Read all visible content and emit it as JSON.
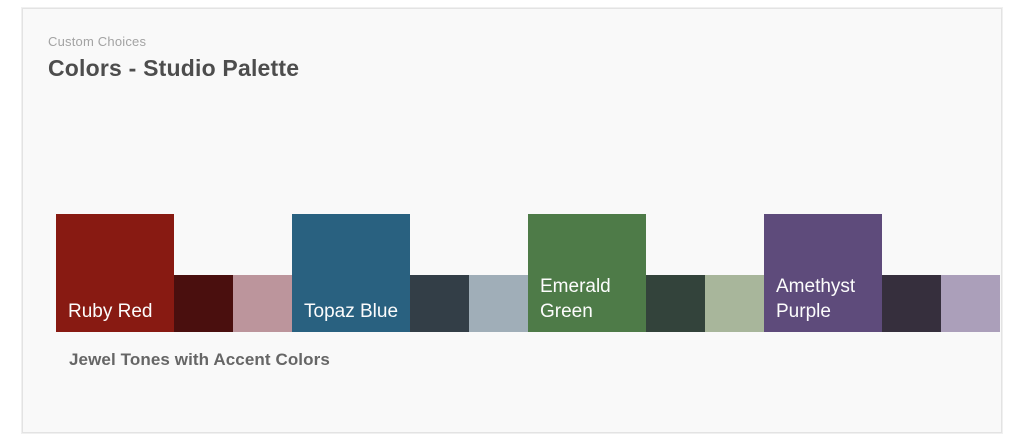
{
  "header": {
    "eyebrow": "Custom Choices",
    "title": "Colors - Studio Palette"
  },
  "caption": "Jewel Tones with Accent Colors",
  "palette": {
    "groups": [
      {
        "name": "Ruby Red",
        "main": "#881a12",
        "dark": "#4a0f0e",
        "light": "#bc959c"
      },
      {
        "name": "Topaz Blue",
        "main": "#296180",
        "dark": "#333e47",
        "light": "#a0aeb8"
      },
      {
        "name": "Emerald Green",
        "main": "#4e7b48",
        "dark": "#33433b",
        "light": "#a8b69b"
      },
      {
        "name": "Amethyst Purple",
        "main": "#5e4b7b",
        "dark": "#362f3d",
        "light": "#ab9fba"
      }
    ]
  },
  "colors": {
    "page_bg": "#ffffff",
    "panel_bg": "#f9f9f9",
    "panel_border": "#e3e3e3",
    "eyebrow_text": "#a3a3a3",
    "title_text": "#4d4d4d",
    "caption_text": "#666666",
    "swatch_label_text": "#fcfcfc"
  }
}
